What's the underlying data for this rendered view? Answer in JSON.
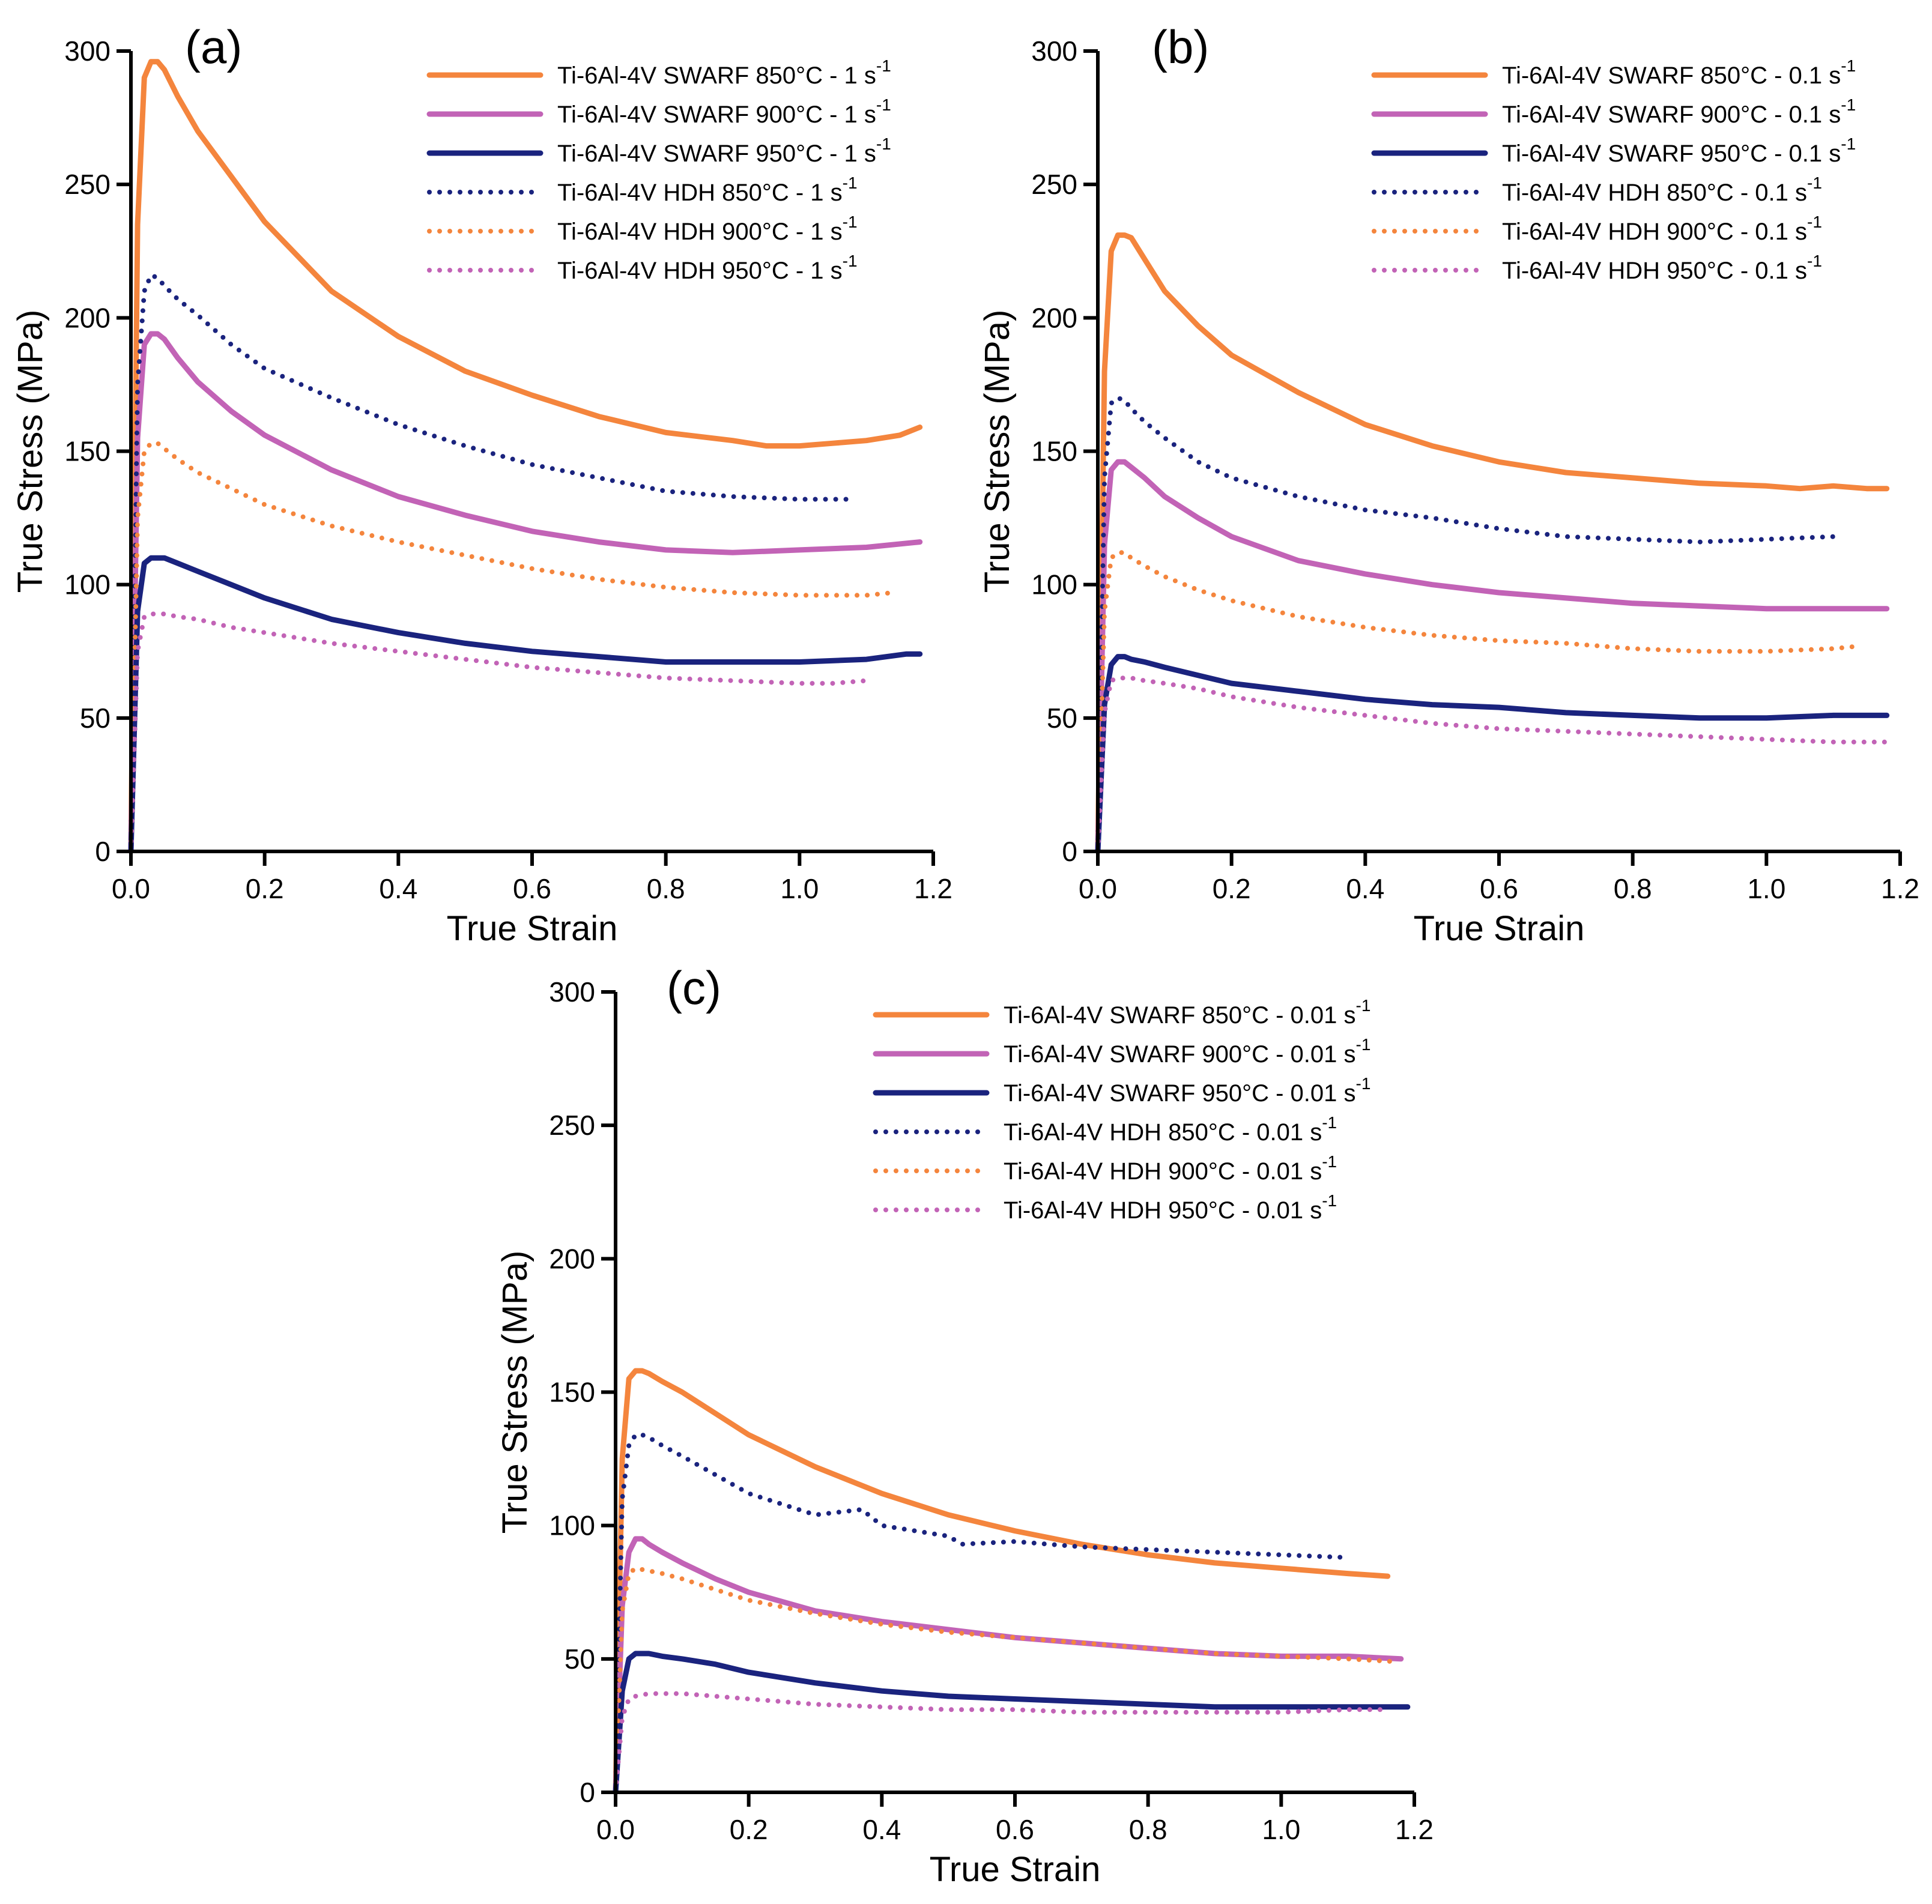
{
  "chart_data": [
    {
      "type": "line",
      "panel_label": "(a)",
      "xlabel": "True Strain",
      "ylabel": "True Stress (MPa)",
      "xlim": [
        0,
        1.2
      ],
      "ylim": [
        0,
        300
      ],
      "xticks": [
        "0.0",
        "0.2",
        "0.4",
        "0.6",
        "0.8",
        "1.0",
        "1.2"
      ],
      "yticks": [
        "0",
        "50",
        "100",
        "150",
        "200",
        "250",
        "300"
      ],
      "legend_position": "top-right",
      "grid": false,
      "series": [
        {
          "name": "Ti-6Al-4V SWARF 850°C - 1 s",
          "superscript": "-1",
          "style": "solid",
          "color": "#F4853D",
          "x": [
            0,
            0.01,
            0.02,
            0.03,
            0.04,
            0.05,
            0.07,
            0.1,
            0.15,
            0.2,
            0.3,
            0.4,
            0.5,
            0.6,
            0.7,
            0.8,
            0.9,
            0.95,
            1.0,
            1.05,
            1.1,
            1.15,
            1.18
          ],
          "y": [
            0,
            235,
            290,
            296,
            296,
            293,
            283,
            270,
            253,
            236,
            210,
            193,
            180,
            171,
            163,
            157,
            154,
            152,
            152,
            153,
            154,
            156,
            159
          ]
        },
        {
          "name": "Ti-6Al-4V SWARF 900°C - 1 s",
          "superscript": "-1",
          "style": "solid",
          "color": "#C263B6",
          "x": [
            0,
            0.01,
            0.02,
            0.03,
            0.04,
            0.05,
            0.07,
            0.1,
            0.15,
            0.2,
            0.3,
            0.4,
            0.5,
            0.6,
            0.7,
            0.8,
            0.9,
            1.0,
            1.1,
            1.18
          ],
          "y": [
            0,
            155,
            190,
            194,
            194,
            192,
            185,
            176,
            165,
            156,
            143,
            133,
            126,
            120,
            116,
            113,
            112,
            113,
            114,
            116
          ]
        },
        {
          "name": "Ti-6Al-4V SWARF 950°C - 1 s",
          "superscript": "-1",
          "style": "solid",
          "color": "#1A237E",
          "x": [
            0,
            0.01,
            0.02,
            0.03,
            0.05,
            0.07,
            0.1,
            0.15,
            0.2,
            0.3,
            0.4,
            0.5,
            0.6,
            0.7,
            0.8,
            0.9,
            1.0,
            1.1,
            1.16,
            1.18
          ],
          "y": [
            0,
            90,
            108,
            110,
            110,
            108,
            105,
            100,
            95,
            87,
            82,
            78,
            75,
            73,
            71,
            71,
            71,
            72,
            74,
            74
          ]
        },
        {
          "name": "Ti-6Al-4V HDH 850°C - 1 s",
          "superscript": "-1",
          "style": "dotted",
          "color": "#1A237E",
          "x": [
            0,
            0.01,
            0.02,
            0.03,
            0.04,
            0.05,
            0.07,
            0.1,
            0.15,
            0.2,
            0.3,
            0.4,
            0.5,
            0.6,
            0.7,
            0.8,
            0.9,
            1.0,
            1.08
          ],
          "y": [
            0,
            175,
            210,
            216,
            215,
            212,
            207,
            201,
            190,
            181,
            170,
            160,
            152,
            145,
            140,
            135,
            133,
            132,
            132
          ]
        },
        {
          "name": "Ti-6Al-4V HDH 900°C - 1 s",
          "superscript": "-1",
          "style": "dotted",
          "color": "#F4853D",
          "x": [
            0,
            0.01,
            0.02,
            0.03,
            0.04,
            0.05,
            0.07,
            0.1,
            0.15,
            0.2,
            0.3,
            0.4,
            0.5,
            0.6,
            0.7,
            0.8,
            0.9,
            1.0,
            1.1,
            1.14
          ],
          "y": [
            0,
            125,
            150,
            153,
            153,
            151,
            147,
            142,
            136,
            130,
            122,
            116,
            111,
            106,
            102,
            99,
            97,
            96,
            96,
            97
          ]
        },
        {
          "name": "Ti-6Al-4V HDH 950°C - 1 s",
          "superscript": "-1",
          "style": "dotted",
          "color": "#C263B6",
          "x": [
            0,
            0.01,
            0.02,
            0.03,
            0.05,
            0.07,
            0.1,
            0.15,
            0.2,
            0.3,
            0.4,
            0.5,
            0.6,
            0.7,
            0.8,
            0.9,
            1.0,
            1.05,
            1.1
          ],
          "y": [
            0,
            75,
            88,
            89,
            89,
            88,
            87,
            84,
            82,
            78,
            75,
            72,
            69,
            67,
            65,
            64,
            63,
            63,
            64
          ]
        }
      ]
    },
    {
      "type": "line",
      "panel_label": "(b)",
      "xlabel": "True Strain",
      "ylabel": "True Stress (MPa)",
      "xlim": [
        0,
        1.2
      ],
      "ylim": [
        0,
        300
      ],
      "xticks": [
        "0.0",
        "0.2",
        "0.4",
        "0.6",
        "0.8",
        "1.0",
        "1.2"
      ],
      "yticks": [
        "0",
        "50",
        "100",
        "150",
        "200",
        "250",
        "300"
      ],
      "legend_position": "top-right",
      "grid": false,
      "series": [
        {
          "name": "Ti-6Al-4V SWARF 850°C - 0.1 s",
          "superscript": "-1",
          "style": "solid",
          "color": "#F4853D",
          "x": [
            0,
            0.01,
            0.02,
            0.03,
            0.04,
            0.05,
            0.07,
            0.1,
            0.15,
            0.2,
            0.3,
            0.4,
            0.5,
            0.6,
            0.7,
            0.8,
            0.9,
            1.0,
            1.05,
            1.1,
            1.15,
            1.18
          ],
          "y": [
            0,
            180,
            225,
            231,
            231,
            230,
            222,
            210,
            197,
            186,
            172,
            160,
            152,
            146,
            142,
            140,
            138,
            137,
            136,
            137,
            136,
            136
          ]
        },
        {
          "name": "Ti-6Al-4V SWARF 900°C - 0.1 s",
          "superscript": "-1",
          "style": "solid",
          "color": "#C263B6",
          "x": [
            0,
            0.01,
            0.02,
            0.03,
            0.04,
            0.05,
            0.07,
            0.1,
            0.15,
            0.2,
            0.3,
            0.4,
            0.5,
            0.6,
            0.7,
            0.8,
            0.9,
            1.0,
            1.1,
            1.18
          ],
          "y": [
            0,
            115,
            143,
            146,
            146,
            144,
            140,
            133,
            125,
            118,
            109,
            104,
            100,
            97,
            95,
            93,
            92,
            91,
            91,
            91
          ]
        },
        {
          "name": "Ti-6Al-4V SWARF 950°C - 0.1 s",
          "superscript": "-1",
          "style": "solid",
          "color": "#1A237E",
          "x": [
            0,
            0.01,
            0.02,
            0.03,
            0.04,
            0.05,
            0.07,
            0.1,
            0.15,
            0.2,
            0.3,
            0.4,
            0.5,
            0.6,
            0.7,
            0.8,
            0.9,
            1.0,
            1.1,
            1.18
          ],
          "y": [
            0,
            55,
            70,
            73,
            73,
            72,
            71,
            69,
            66,
            63,
            60,
            57,
            55,
            54,
            52,
            51,
            50,
            50,
            51,
            51
          ]
        },
        {
          "name": "Ti-6Al-4V HDH 850°C - 0.1 s",
          "superscript": "-1",
          "style": "dotted",
          "color": "#1A237E",
          "x": [
            0,
            0.01,
            0.02,
            0.03,
            0.04,
            0.05,
            0.07,
            0.1,
            0.15,
            0.2,
            0.3,
            0.4,
            0.5,
            0.6,
            0.7,
            0.8,
            0.9,
            1.0,
            1.1
          ],
          "y": [
            0,
            140,
            168,
            170,
            169,
            166,
            161,
            155,
            146,
            140,
            133,
            128,
            125,
            121,
            118,
            117,
            116,
            117,
            118
          ]
        },
        {
          "name": "Ti-6Al-4V HDH 900°C - 0.1 s",
          "superscript": "-1",
          "style": "dotted",
          "color": "#F4853D",
          "x": [
            0,
            0.01,
            0.02,
            0.03,
            0.04,
            0.05,
            0.07,
            0.1,
            0.15,
            0.2,
            0.3,
            0.4,
            0.5,
            0.6,
            0.7,
            0.8,
            0.9,
            1.0,
            1.1,
            1.14
          ],
          "y": [
            0,
            90,
            110,
            112,
            112,
            110,
            107,
            103,
            98,
            94,
            88,
            84,
            81,
            79,
            78,
            76,
            75,
            75,
            76,
            77
          ]
        },
        {
          "name": "Ti-6Al-4V HDH 950°C - 0.1 s",
          "superscript": "-1",
          "style": "dotted",
          "color": "#C263B6",
          "x": [
            0,
            0.01,
            0.02,
            0.03,
            0.05,
            0.07,
            0.1,
            0.15,
            0.2,
            0.3,
            0.4,
            0.5,
            0.6,
            0.7,
            0.8,
            0.9,
            1.0,
            1.1,
            1.18
          ],
          "y": [
            0,
            52,
            64,
            65,
            65,
            64,
            63,
            61,
            58,
            54,
            51,
            48,
            46,
            45,
            44,
            43,
            42,
            41,
            41
          ]
        }
      ]
    },
    {
      "type": "line",
      "panel_label": "(c)",
      "xlabel": "True Strain",
      "ylabel": "True Stress (MPa)",
      "xlim": [
        0,
        1.2
      ],
      "ylim": [
        0,
        300
      ],
      "xticks": [
        "0.0",
        "0.2",
        "0.4",
        "0.6",
        "0.8",
        "1.0",
        "1.2"
      ],
      "yticks": [
        "0",
        "50",
        "100",
        "150",
        "200",
        "250",
        "300"
      ],
      "legend_position": "top-right",
      "grid": false,
      "series": [
        {
          "name": "Ti-6Al-4V SWARF 850°C - 0.01 s",
          "superscript": "-1",
          "style": "solid",
          "color": "#F4853D",
          "x": [
            0,
            0.01,
            0.02,
            0.03,
            0.04,
            0.05,
            0.07,
            0.1,
            0.15,
            0.2,
            0.3,
            0.4,
            0.5,
            0.6,
            0.7,
            0.8,
            0.9,
            1.0,
            1.1,
            1.16
          ],
          "y": [
            0,
            125,
            155,
            158,
            158,
            157,
            154,
            150,
            142,
            134,
            122,
            112,
            104,
            98,
            93,
            89,
            86,
            84,
            82,
            81
          ]
        },
        {
          "name": "Ti-6Al-4V SWARF 900°C - 0.01 s",
          "superscript": "-1",
          "style": "solid",
          "color": "#C263B6",
          "x": [
            0,
            0.01,
            0.02,
            0.03,
            0.04,
            0.05,
            0.07,
            0.1,
            0.15,
            0.2,
            0.3,
            0.4,
            0.5,
            0.6,
            0.7,
            0.8,
            0.9,
            1.0,
            1.1,
            1.18
          ],
          "y": [
            0,
            70,
            90,
            95,
            95,
            93,
            90,
            86,
            80,
            75,
            68,
            64,
            61,
            58,
            56,
            54,
            52,
            51,
            51,
            50
          ]
        },
        {
          "name": "Ti-6Al-4V SWARF 950°C - 0.01 s",
          "superscript": "-1",
          "style": "solid",
          "color": "#1A237E",
          "x": [
            0,
            0.01,
            0.02,
            0.03,
            0.05,
            0.07,
            0.1,
            0.15,
            0.2,
            0.3,
            0.4,
            0.5,
            0.6,
            0.7,
            0.8,
            0.9,
            1.0,
            1.1,
            1.19
          ],
          "y": [
            0,
            38,
            50,
            52,
            52,
            51,
            50,
            48,
            45,
            41,
            38,
            36,
            35,
            34,
            33,
            32,
            32,
            32,
            32
          ]
        },
        {
          "name": "Ti-6Al-4V HDH 850°C - 0.01 s",
          "superscript": "-1",
          "style": "dotted",
          "color": "#1A237E",
          "x": [
            0,
            0.01,
            0.02,
            0.03,
            0.04,
            0.05,
            0.07,
            0.1,
            0.15,
            0.2,
            0.3,
            0.37,
            0.4,
            0.5,
            0.52,
            0.6,
            0.7,
            0.8,
            0.9,
            1.0,
            1.1
          ],
          "y": [
            0,
            110,
            130,
            134,
            134,
            133,
            130,
            126,
            119,
            112,
            104,
            106,
            100,
            96,
            93,
            94,
            92,
            91,
            90,
            89,
            88
          ]
        },
        {
          "name": "Ti-6Al-4V HDH 900°C - 0.01 s",
          "superscript": "-1",
          "style": "dotted",
          "color": "#F4853D",
          "x": [
            0,
            0.01,
            0.02,
            0.03,
            0.05,
            0.07,
            0.1,
            0.15,
            0.2,
            0.3,
            0.4,
            0.5,
            0.6,
            0.7,
            0.8,
            0.9,
            1.0,
            1.1,
            1.17
          ],
          "y": [
            0,
            68,
            82,
            84,
            83,
            82,
            80,
            76,
            72,
            67,
            63,
            60,
            58,
            56,
            54,
            52,
            51,
            50,
            49
          ]
        },
        {
          "name": "Ti-6Al-4V HDH 950°C - 0.01 s",
          "superscript": "-1",
          "style": "dotted",
          "color": "#C263B6",
          "x": [
            0,
            0.01,
            0.02,
            0.03,
            0.05,
            0.07,
            0.1,
            0.15,
            0.2,
            0.3,
            0.4,
            0.5,
            0.6,
            0.7,
            0.8,
            0.9,
            1.0,
            1.1,
            1.16
          ],
          "y": [
            0,
            28,
            35,
            36,
            37,
            37,
            37,
            36,
            35,
            33,
            32,
            31,
            31,
            30,
            30,
            30,
            30,
            31,
            31
          ]
        }
      ]
    }
  ]
}
